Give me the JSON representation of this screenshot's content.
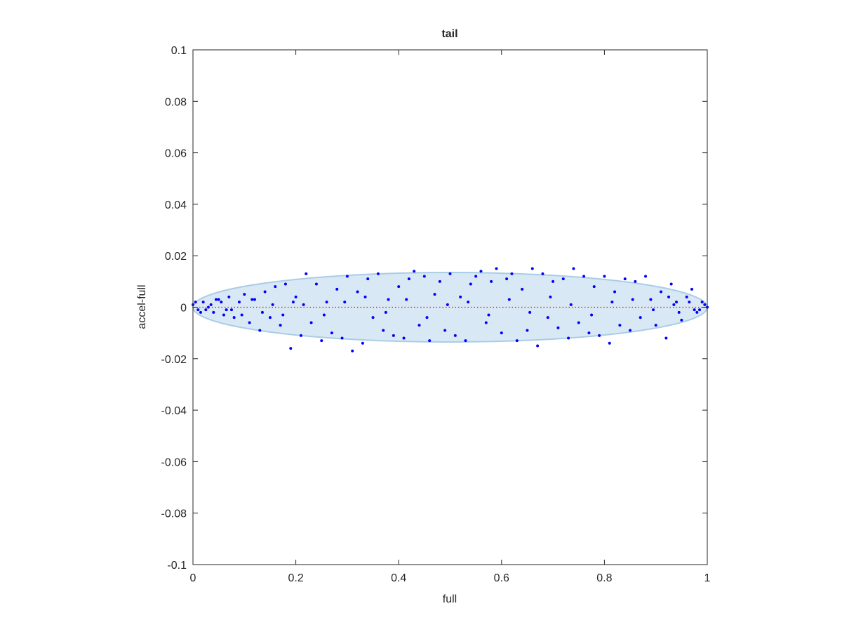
{
  "chart_data": {
    "type": "scatter",
    "title": "tail",
    "xlabel": "full",
    "ylabel": "accel-full",
    "xlim": [
      0,
      1
    ],
    "ylim": [
      -0.1,
      0.1
    ],
    "xticks": [
      0,
      0.2,
      0.4,
      0.6,
      0.8,
      1
    ],
    "yticks": [
      -0.1,
      -0.08,
      -0.06,
      -0.04,
      -0.02,
      0,
      0.02,
      0.04,
      0.06,
      0.08,
      0.1
    ],
    "grid": false,
    "ellipse": {
      "cx": 0.5,
      "cy": 0,
      "rx": 0.5,
      "ry": 0.0135,
      "color": "#a9cde6"
    },
    "reference_line": {
      "y": 0,
      "color": "#ff0000"
    },
    "series": [
      {
        "color": "#0000ff",
        "x": [
          0.0,
          0.01,
          0.02,
          0.03,
          0.04,
          0.05,
          0.06,
          0.07,
          0.08,
          0.09,
          0.1,
          0.11,
          0.12,
          0.13,
          0.14,
          0.15,
          0.16,
          0.17,
          0.18,
          0.19,
          0.2,
          0.21,
          0.22,
          0.23,
          0.24,
          0.25,
          0.26,
          0.27,
          0.28,
          0.29,
          0.3,
          0.31,
          0.32,
          0.33,
          0.34,
          0.35,
          0.36,
          0.37,
          0.38,
          0.39,
          0.4,
          0.41,
          0.42,
          0.43,
          0.44,
          0.45,
          0.46,
          0.47,
          0.48,
          0.49,
          0.5,
          0.51,
          0.52,
          0.53,
          0.54,
          0.55,
          0.56,
          0.57,
          0.58,
          0.59,
          0.6,
          0.61,
          0.62,
          0.63,
          0.64,
          0.65,
          0.66,
          0.67,
          0.68,
          0.69,
          0.7,
          0.71,
          0.72,
          0.73,
          0.74,
          0.75,
          0.76,
          0.77,
          0.78,
          0.79,
          0.8,
          0.81,
          0.82,
          0.83,
          0.84,
          0.85,
          0.86,
          0.87,
          0.88,
          0.89,
          0.9,
          0.91,
          0.92,
          0.93,
          0.94,
          0.95,
          0.96,
          0.97,
          0.98,
          0.99,
          0.015,
          0.035,
          0.055,
          0.075,
          0.095,
          0.115,
          0.135,
          0.155,
          0.175,
          0.195,
          0.215,
          0.255,
          0.295,
          0.335,
          0.375,
          0.415,
          0.455,
          0.495,
          0.535,
          0.575,
          0.615,
          0.655,
          0.695,
          0.735,
          0.775,
          0.815,
          0.855,
          0.895,
          0.935,
          0.975,
          0.995,
          0.985,
          0.965,
          0.945,
          0.925,
          0.005,
          0.025,
          0.045,
          0.065,
          1.0
        ],
        "values": [
          0.001,
          -0.001,
          0.002,
          0.0,
          -0.002,
          0.003,
          -0.003,
          0.004,
          -0.004,
          0.002,
          0.005,
          -0.006,
          0.003,
          -0.009,
          0.006,
          -0.004,
          0.008,
          -0.007,
          0.009,
          -0.016,
          0.004,
          -0.011,
          0.013,
          -0.006,
          0.009,
          -0.013,
          0.002,
          -0.01,
          0.007,
          -0.012,
          0.012,
          -0.017,
          0.006,
          -0.014,
          0.011,
          -0.004,
          0.013,
          -0.009,
          0.003,
          -0.011,
          0.008,
          -0.012,
          0.011,
          0.014,
          -0.007,
          0.012,
          -0.013,
          0.005,
          0.01,
          -0.009,
          0.013,
          -0.011,
          0.004,
          -0.013,
          0.009,
          0.012,
          0.014,
          -0.006,
          0.01,
          0.015,
          -0.01,
          0.011,
          0.013,
          -0.013,
          0.007,
          -0.009,
          0.015,
          -0.015,
          0.013,
          -0.004,
          0.01,
          -0.008,
          0.011,
          -0.012,
          0.015,
          -0.006,
          0.012,
          -0.01,
          0.008,
          -0.011,
          0.012,
          -0.014,
          0.006,
          -0.007,
          0.011,
          -0.009,
          0.01,
          -0.004,
          0.012,
          0.003,
          -0.007,
          0.006,
          -0.012,
          0.009,
          0.002,
          -0.005,
          0.004,
          0.007,
          -0.002,
          0.002,
          -0.002,
          0.001,
          0.002,
          -0.001,
          -0.003,
          0.003,
          -0.002,
          0.001,
          -0.003,
          0.002,
          0.001,
          -0.003,
          0.002,
          0.004,
          -0.002,
          0.003,
          -0.004,
          0.001,
          0.002,
          -0.003,
          0.003,
          -0.002,
          0.004,
          0.001,
          -0.003,
          0.002,
          0.003,
          -0.001,
          0.001,
          -0.001,
          0.001,
          -0.001,
          0.002,
          -0.002,
          0.004,
          0.002,
          -0.001,
          0.003,
          -0.001,
          0.0
        ]
      }
    ]
  }
}
